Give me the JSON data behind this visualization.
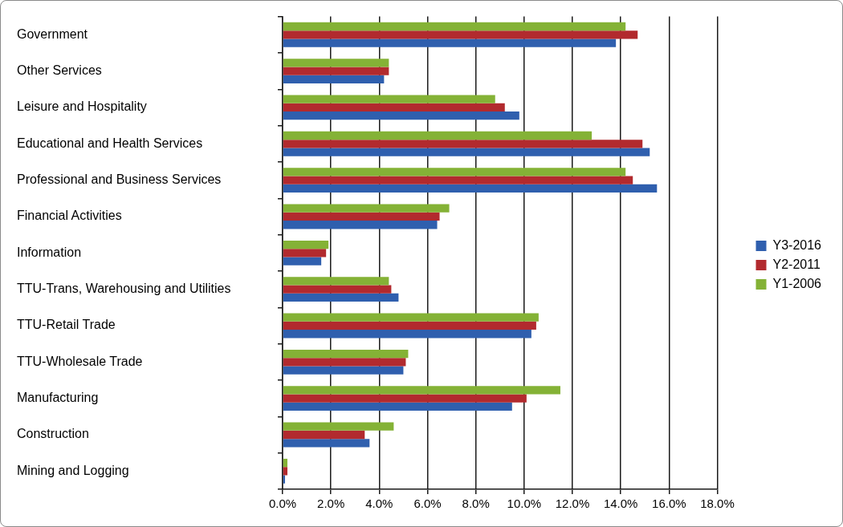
{
  "chart_data": {
    "type": "bar",
    "orientation": "horizontal",
    "categories": [
      "Government",
      "Other Services",
      "Leisure and Hospitality",
      "Educational and Health Services",
      "Professional and Business Services",
      "Financial Activities",
      "Information",
      "TTU-Trans, Warehousing and Utilities",
      "TTU-Retail Trade",
      "TTU-Wholesale Trade",
      "Manufacturing",
      "Construction",
      "Mining and Logging"
    ],
    "series": [
      {
        "name": "Y3-2016",
        "color": "#2f5fae",
        "values": [
          13.8,
          4.2,
          9.8,
          15.2,
          15.5,
          6.4,
          1.6,
          4.8,
          10.3,
          5.0,
          9.5,
          3.6,
          0.1
        ]
      },
      {
        "name": "Y2-2011",
        "color": "#b22a2e",
        "values": [
          14.7,
          4.4,
          9.2,
          14.9,
          14.5,
          6.5,
          1.8,
          4.5,
          10.5,
          5.1,
          10.1,
          3.4,
          0.2
        ]
      },
      {
        "name": "Y1-2006",
        "color": "#84b236",
        "values": [
          14.2,
          4.4,
          8.8,
          12.8,
          14.2,
          6.9,
          1.9,
          4.4,
          10.6,
          5.2,
          11.5,
          4.6,
          0.2
        ]
      }
    ],
    "xlim": [
      0,
      18
    ],
    "xticks": [
      {
        "value": 0,
        "label": "0.0%"
      },
      {
        "value": 2,
        "label": "2.0%"
      },
      {
        "value": 4,
        "label": "4.0%"
      },
      {
        "value": 6,
        "label": "6.0%"
      },
      {
        "value": 8,
        "label": "8.0%"
      },
      {
        "value": 10,
        "label": "10.0%"
      },
      {
        "value": 12,
        "label": "12.0%"
      },
      {
        "value": 14,
        "label": "14.0%"
      },
      {
        "value": 16,
        "label": "16.0%"
      },
      {
        "value": 18,
        "label": "18.0%"
      }
    ],
    "grid": "x",
    "legend": "right"
  }
}
